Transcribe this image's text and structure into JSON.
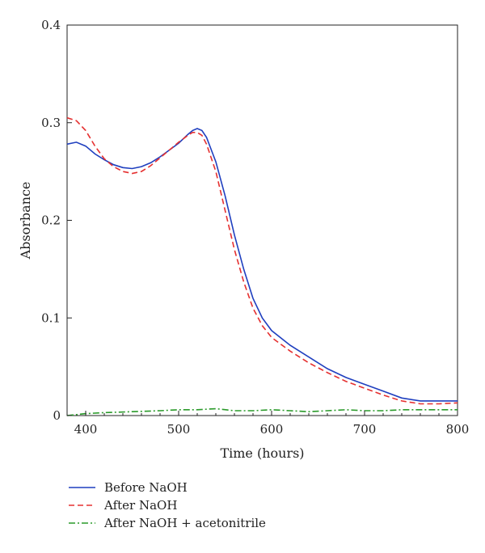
{
  "chart_data": {
    "type": "line",
    "title": "",
    "xlabel": "Time (hours)",
    "ylabel": "Absorbance",
    "xlim": [
      380,
      800
    ],
    "ylim": [
      0,
      0.4
    ],
    "xticks": [
      400,
      500,
      600,
      700,
      800
    ],
    "yticks": [
      0,
      0.1,
      0.2,
      0.3,
      0.4
    ],
    "xtick_labels": [
      "400",
      "500",
      "600",
      "700",
      "800"
    ],
    "ytick_labels": [
      "0",
      "0.1",
      "0.2",
      "0.3",
      "0.4"
    ],
    "grid": false,
    "legend_position": "bottom",
    "series": [
      {
        "name": "Before NaOH",
        "color": "#1f3fbf",
        "dash": "solid",
        "x": [
          380,
          390,
          400,
          410,
          420,
          430,
          440,
          450,
          460,
          470,
          480,
          490,
          500,
          510,
          515,
          520,
          525,
          530,
          540,
          550,
          560,
          570,
          580,
          590,
          600,
          620,
          640,
          660,
          680,
          700,
          720,
          740,
          760,
          780,
          800
        ],
        "y": [
          0.278,
          0.28,
          0.276,
          0.268,
          0.262,
          0.257,
          0.254,
          0.253,
          0.255,
          0.259,
          0.265,
          0.272,
          0.279,
          0.288,
          0.292,
          0.294,
          0.292,
          0.285,
          0.26,
          0.225,
          0.185,
          0.15,
          0.12,
          0.1,
          0.087,
          0.072,
          0.06,
          0.048,
          0.039,
          0.032,
          0.025,
          0.018,
          0.015,
          0.015,
          0.015
        ]
      },
      {
        "name": "After NaOH",
        "color": "#e53030",
        "dash": "dashed",
        "x": [
          380,
          390,
          400,
          410,
          420,
          430,
          440,
          450,
          460,
          470,
          480,
          490,
          500,
          510,
          515,
          520,
          525,
          530,
          540,
          550,
          560,
          570,
          580,
          590,
          600,
          620,
          640,
          660,
          680,
          700,
          720,
          740,
          760,
          780,
          800
        ],
        "y": [
          0.305,
          0.302,
          0.292,
          0.276,
          0.263,
          0.255,
          0.25,
          0.248,
          0.25,
          0.256,
          0.264,
          0.272,
          0.28,
          0.287,
          0.29,
          0.29,
          0.287,
          0.278,
          0.25,
          0.21,
          0.17,
          0.137,
          0.11,
          0.092,
          0.08,
          0.066,
          0.054,
          0.044,
          0.035,
          0.028,
          0.021,
          0.015,
          0.012,
          0.012,
          0.013
        ]
      },
      {
        "name": "After NaOH + acetonitrile",
        "color": "#2a9a2a",
        "dash": "dashdot",
        "x": [
          380,
          400,
          420,
          450,
          480,
          500,
          520,
          540,
          560,
          580,
          600,
          620,
          640,
          660,
          680,
          700,
          720,
          740,
          760,
          780,
          800
        ],
        "y": [
          0.0,
          0.002,
          0.003,
          0.004,
          0.005,
          0.006,
          0.006,
          0.007,
          0.005,
          0.005,
          0.006,
          0.005,
          0.004,
          0.005,
          0.006,
          0.005,
          0.005,
          0.006,
          0.006,
          0.006,
          0.006
        ]
      }
    ]
  }
}
